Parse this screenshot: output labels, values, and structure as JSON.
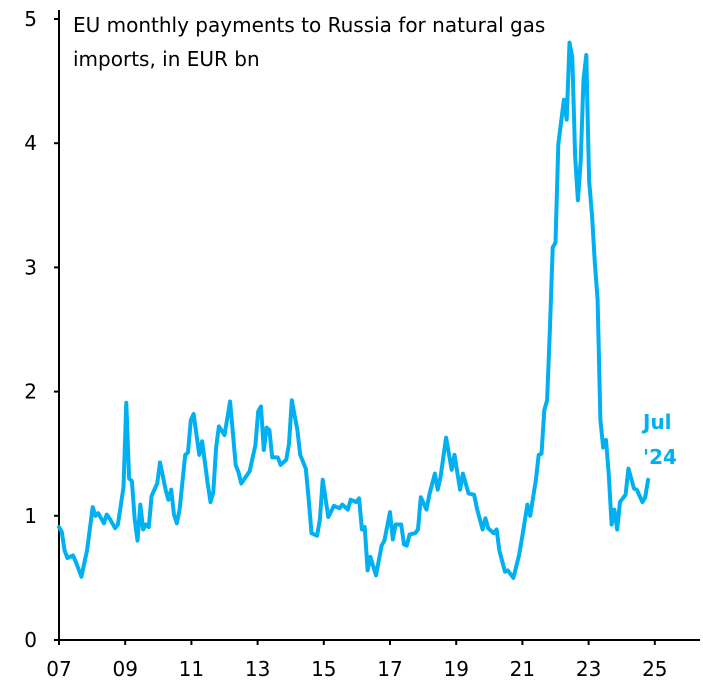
{
  "chart_data": {
    "type": "line",
    "title_lines": [
      "EU monthly payments to Russia for natural gas",
      "imports, in EUR bn"
    ],
    "xlabel": "",
    "ylabel": "",
    "ylim": [
      0,
      5
    ],
    "yticks": [
      "0",
      "1",
      "2",
      "3",
      "4",
      "5"
    ],
    "xticks": [
      "07",
      "09",
      "11",
      "13",
      "15",
      "17",
      "19",
      "21",
      "23",
      "25"
    ],
    "grid": false,
    "line_color": "#00b0f0",
    "annotation_lines": [
      "Jul",
      "'24"
    ],
    "series": [
      {
        "points": [
          [
            "2007-01",
            0.91
          ],
          [
            "2007-02",
            0.87
          ],
          [
            "2007-03",
            0.72
          ],
          [
            "2007-04",
            0.66
          ],
          [
            "2007-06",
            0.68
          ],
          [
            "2007-07",
            0.63
          ],
          [
            "2007-09",
            0.51
          ],
          [
            "2007-11",
            0.72
          ],
          [
            "2008-01",
            1.07
          ],
          [
            "2008-02",
            1.0
          ],
          [
            "2008-03",
            1.02
          ],
          [
            "2008-05",
            0.94
          ],
          [
            "2008-06",
            1.01
          ],
          [
            "2008-07",
            0.98
          ],
          [
            "2008-09",
            0.9
          ],
          [
            "2008-10",
            0.93
          ],
          [
            "2008-12",
            1.23
          ],
          [
            "2009-01",
            1.91
          ],
          [
            "2009-02",
            1.3
          ],
          [
            "2009-03",
            1.28
          ],
          [
            "2009-04",
            0.97
          ],
          [
            "2009-05",
            0.8
          ],
          [
            "2009-06",
            1.09
          ],
          [
            "2009-07",
            0.89
          ],
          [
            "2009-08",
            0.93
          ],
          [
            "2009-09",
            0.91
          ],
          [
            "2009-10",
            1.16
          ],
          [
            "2009-12",
            1.26
          ],
          [
            "2010-01",
            1.43
          ],
          [
            "2010-03",
            1.21
          ],
          [
            "2010-04",
            1.13
          ],
          [
            "2010-05",
            1.21
          ],
          [
            "2010-06",
            1.01
          ],
          [
            "2010-07",
            0.94
          ],
          [
            "2010-08",
            1.05
          ],
          [
            "2010-10",
            1.49
          ],
          [
            "2010-11",
            1.51
          ],
          [
            "2010-12",
            1.77
          ],
          [
            "2011-01",
            1.82
          ],
          [
            "2011-03",
            1.49
          ],
          [
            "2011-04",
            1.6
          ],
          [
            "2011-06",
            1.26
          ],
          [
            "2011-07",
            1.11
          ],
          [
            "2011-08",
            1.19
          ],
          [
            "2011-09",
            1.55
          ],
          [
            "2011-10",
            1.72
          ],
          [
            "2011-12",
            1.65
          ],
          [
            "2012-02",
            1.92
          ],
          [
            "2012-04",
            1.41
          ],
          [
            "2012-05",
            1.35
          ],
          [
            "2012-06",
            1.26
          ],
          [
            "2012-09",
            1.36
          ],
          [
            "2012-11",
            1.57
          ],
          [
            "2012-12",
            1.84
          ],
          [
            "2013-01",
            1.88
          ],
          [
            "2013-02",
            1.53
          ],
          [
            "2013-03",
            1.71
          ],
          [
            "2013-04",
            1.69
          ],
          [
            "2013-05",
            1.47
          ],
          [
            "2013-07",
            1.47
          ],
          [
            "2013-08",
            1.41
          ],
          [
            "2013-10",
            1.45
          ],
          [
            "2013-11",
            1.58
          ],
          [
            "2013-12",
            1.93
          ],
          [
            "2014-02",
            1.69
          ],
          [
            "2014-03",
            1.49
          ],
          [
            "2014-05",
            1.38
          ],
          [
            "2014-06",
            1.14
          ],
          [
            "2014-07",
            0.86
          ],
          [
            "2014-09",
            0.84
          ],
          [
            "2014-10",
            0.97
          ],
          [
            "2014-11",
            1.29
          ],
          [
            "2015-01",
            0.99
          ],
          [
            "2015-03",
            1.08
          ],
          [
            "2015-05",
            1.06
          ],
          [
            "2015-06",
            1.09
          ],
          [
            "2015-08",
            1.05
          ],
          [
            "2015-09",
            1.13
          ],
          [
            "2015-11",
            1.11
          ],
          [
            "2015-12",
            1.14
          ],
          [
            "2016-01",
            0.89
          ],
          [
            "2016-02",
            0.91
          ],
          [
            "2016-03",
            0.56
          ],
          [
            "2016-04",
            0.67
          ],
          [
            "2016-06",
            0.52
          ],
          [
            "2016-08",
            0.76
          ],
          [
            "2016-09",
            0.8
          ],
          [
            "2016-11",
            1.03
          ],
          [
            "2016-12",
            0.81
          ],
          [
            "2017-01",
            0.93
          ],
          [
            "2017-03",
            0.93
          ],
          [
            "2017-04",
            0.77
          ],
          [
            "2017-05",
            0.76
          ],
          [
            "2017-06",
            0.85
          ],
          [
            "2017-08",
            0.86
          ],
          [
            "2017-09",
            0.89
          ],
          [
            "2017-10",
            1.15
          ],
          [
            "2017-12",
            1.05
          ],
          [
            "2018-01",
            1.17
          ],
          [
            "2018-03",
            1.34
          ],
          [
            "2018-04",
            1.21
          ],
          [
            "2018-05",
            1.31
          ],
          [
            "2018-07",
            1.63
          ],
          [
            "2018-09",
            1.37
          ],
          [
            "2018-10",
            1.49
          ],
          [
            "2018-12",
            1.21
          ],
          [
            "2019-01",
            1.34
          ],
          [
            "2019-03",
            1.18
          ],
          [
            "2019-05",
            1.17
          ],
          [
            "2019-06",
            1.06
          ],
          [
            "2019-08",
            0.89
          ],
          [
            "2019-09",
            0.98
          ],
          [
            "2019-10",
            0.9
          ],
          [
            "2019-12",
            0.86
          ],
          [
            "2020-01",
            0.89
          ],
          [
            "2020-02",
            0.72
          ],
          [
            "2020-04",
            0.55
          ],
          [
            "2020-05",
            0.56
          ],
          [
            "2020-07",
            0.5
          ],
          [
            "2020-09",
            0.68
          ],
          [
            "2020-10",
            0.81
          ],
          [
            "2020-12",
            1.09
          ],
          [
            "2021-01",
            1.0
          ],
          [
            "2021-03",
            1.29
          ],
          [
            "2021-04",
            1.49
          ],
          [
            "2021-05",
            1.5
          ],
          [
            "2021-06",
            1.85
          ],
          [
            "2021-07",
            1.93
          ],
          [
            "2021-08",
            2.5
          ],
          [
            "2021-09",
            3.16
          ],
          [
            "2021-10",
            3.2
          ],
          [
            "2021-11",
            3.99
          ],
          [
            "2022-01",
            4.35
          ],
          [
            "2022-02",
            4.19
          ],
          [
            "2022-03",
            4.81
          ],
          [
            "2022-04",
            4.69
          ],
          [
            "2022-05",
            3.9
          ],
          [
            "2022-06",
            3.54
          ],
          [
            "2022-07",
            3.86
          ],
          [
            "2022-08",
            4.51
          ],
          [
            "2022-09",
            4.71
          ],
          [
            "2022-10",
            3.7
          ],
          [
            "2022-11",
            3.42
          ],
          [
            "2022-12",
            3.04
          ],
          [
            "2023-01",
            2.74
          ],
          [
            "2023-02",
            1.77
          ],
          [
            "2023-03",
            1.55
          ],
          [
            "2023-04",
            1.61
          ],
          [
            "2023-05",
            1.33
          ],
          [
            "2023-06",
            0.93
          ],
          [
            "2023-07",
            1.05
          ],
          [
            "2023-08",
            0.89
          ],
          [
            "2023-09",
            1.11
          ],
          [
            "2023-11",
            1.17
          ],
          [
            "2023-12",
            1.38
          ],
          [
            "2024-01",
            1.3
          ],
          [
            "2024-02",
            1.22
          ],
          [
            "2024-03",
            1.21
          ],
          [
            "2024-05",
            1.11
          ],
          [
            "2024-06",
            1.15
          ],
          [
            "2024-07",
            1.29
          ]
        ]
      }
    ]
  }
}
